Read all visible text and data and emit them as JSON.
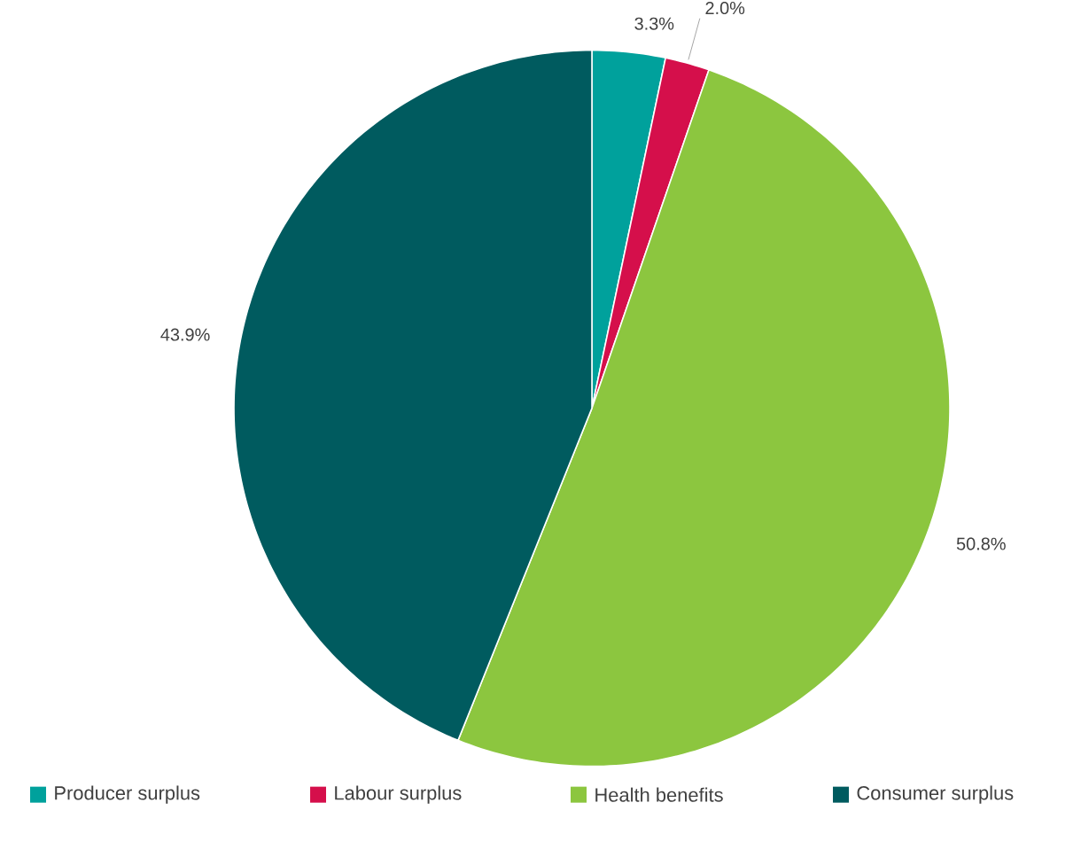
{
  "chart_data": {
    "type": "pie",
    "categories": [
      "Producer surplus",
      "Labour surplus",
      "Health benefits",
      "Consumer surplus"
    ],
    "values": [
      3.3,
      2.0,
      50.8,
      43.9
    ],
    "value_labels": [
      "3.3%",
      "2.0%",
      "50.8%",
      "43.9%"
    ],
    "colors": [
      "#00a19c",
      "#d50f4b",
      "#8cc63f",
      "#005b5f"
    ],
    "legend": "bottom"
  }
}
